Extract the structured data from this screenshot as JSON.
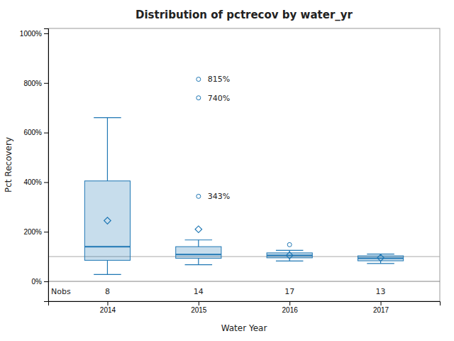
{
  "chart_data": {
    "type": "box",
    "title": "Distribution of pctrecov by water_yr",
    "xlabel": "Water Year",
    "ylabel": "Pct Recovery",
    "categories": [
      "2014",
      "2015",
      "2016",
      "2017"
    ],
    "ylim": [
      -80,
      1020
    ],
    "yticks": [
      {
        "value": 0,
        "label": "0%"
      },
      {
        "value": 200,
        "label": "200%"
      },
      {
        "value": 400,
        "label": "400%"
      },
      {
        "value": 600,
        "label": "600%"
      },
      {
        "value": 800,
        "label": "800%"
      },
      {
        "value": 1000,
        "label": "1000%"
      }
    ],
    "grid": false,
    "reference_line": 100,
    "nobs_label": "Nobs",
    "nobs": [
      8,
      14,
      17,
      13
    ],
    "boxes": [
      {
        "q1": 85,
        "median": 140,
        "q3": 405,
        "mean": 245,
        "whisker_low": 28,
        "whisker_high": 660,
        "outliers": [],
        "outlier_labels": []
      },
      {
        "q1": 93,
        "median": 108,
        "q3": 140,
        "mean": 210,
        "whisker_low": 67,
        "whisker_high": 167,
        "outliers": [
          343,
          740,
          815
        ],
        "outlier_labels": [
          "343%",
          "740%",
          "815%"
        ]
      },
      {
        "q1": 95,
        "median": 105,
        "q3": 115,
        "mean": 105,
        "whisker_low": 82,
        "whisker_high": 125,
        "outliers": [
          148
        ],
        "outlier_labels": [
          null
        ]
      },
      {
        "q1": 83,
        "median": 93,
        "q3": 103,
        "mean": 95,
        "whisker_low": 72,
        "whisker_high": 110,
        "outliers": [],
        "outlier_labels": []
      }
    ]
  }
}
